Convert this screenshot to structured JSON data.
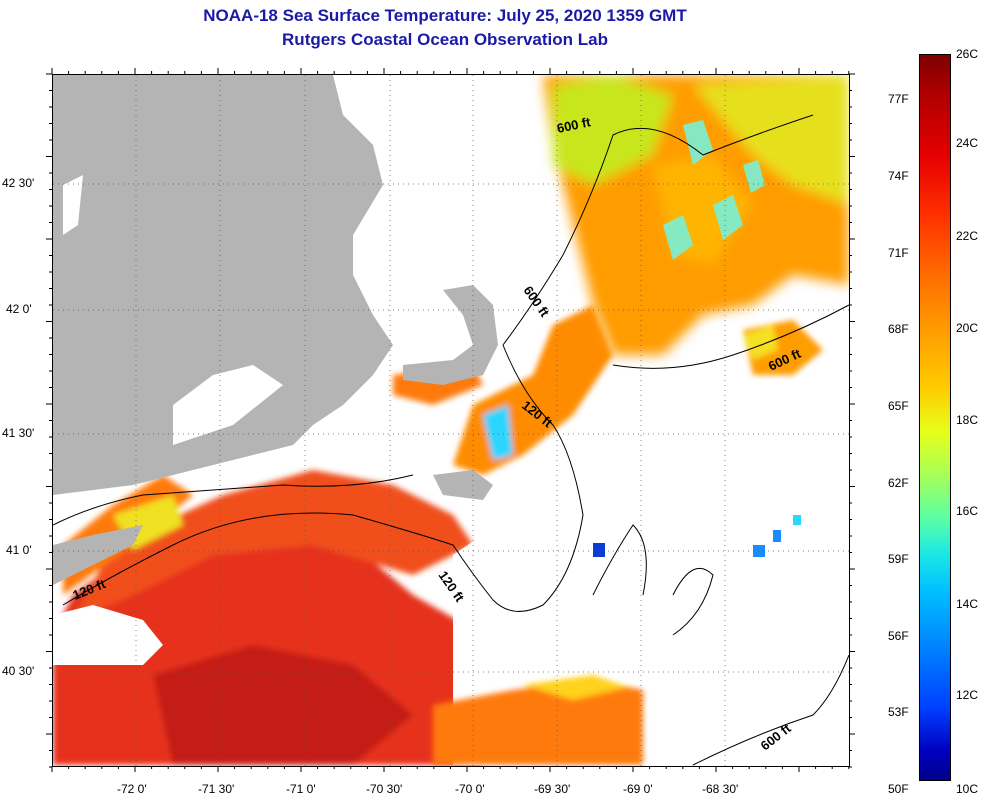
{
  "title": "NOAA-18 Sea Surface Temperature:  July 25, 2020 1359 GMT",
  "subtitle": "Rutgers Coastal Ocean Observation Lab",
  "lon_labels": [
    "-72 0'",
    "-71 30'",
    "-71 0'",
    "-70 30'",
    "-70 0'",
    "-69 30'",
    "-69 0'",
    "-68 30'"
  ],
  "lat_labels": [
    "42 30'",
    "42 0'",
    "41 30'",
    "41 0'",
    "40 30'"
  ],
  "contour_labels": [
    "600 ft",
    "600 ft",
    "600 ft",
    "600 ft",
    "120 ft",
    "120 ft",
    "120 ft"
  ],
  "colorbar": {
    "fahrenheit": [
      "77F",
      "74F",
      "71F",
      "68F",
      "65F",
      "62F",
      "59F",
      "56F",
      "53F",
      "50F"
    ],
    "celsius": [
      "26C",
      "24C",
      "22C",
      "20C",
      "18C",
      "16C",
      "14C",
      "12C",
      "10C"
    ]
  },
  "colors": {
    "land": "#b4b4b4",
    "title": "#1a1aa6",
    "warm": "#e0301a",
    "mid": "#ff9c00",
    "cool": "#1ae6e6"
  }
}
